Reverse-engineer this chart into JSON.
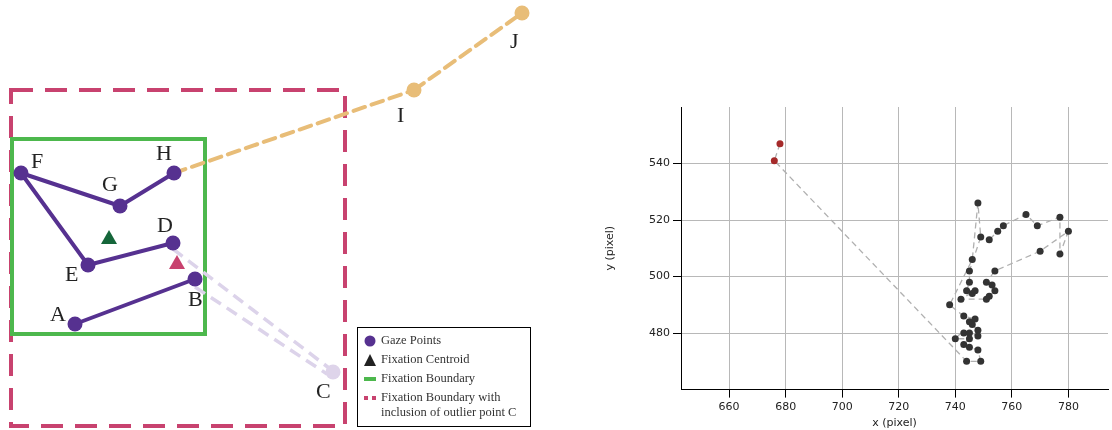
{
  "chart_data": [
    {
      "type": "other",
      "annotations": [
        "A",
        "B",
        "C",
        "D",
        "E",
        "F",
        "G",
        "H",
        "I",
        "J",
        "Gaze Points",
        "Fixation Centroid",
        "Fixation Boundary",
        "Fixation Boundary with inclusion of outlier point C"
      ]
    },
    {
      "type": "scatter",
      "xlabel": "x (pixel)",
      "ylabel": "y (pixel)",
      "xlim": [
        643,
        794
      ],
      "ylim": [
        460,
        560
      ],
      "xticks": [
        660,
        680,
        700,
        720,
        740,
        760,
        780
      ],
      "yticks": [
        480,
        500,
        520,
        540
      ],
      "grid": true,
      "legend": false,
      "series": [
        {
          "type": "line",
          "color": "#b0b0b0",
          "line_style": "dashed",
          "marker": "none",
          "x": [
            678,
            676,
            744,
            749,
            748,
            745,
            743,
            745,
            740,
            742,
            743,
            745,
            748,
            748,
            746,
            745,
            747,
            743,
            738,
            746,
            748,
            749,
            745,
            745,
            744,
            746,
            747,
            742,
            751,
            752,
            754,
            753,
            751,
            754,
            770,
            780,
            777,
            777,
            769,
            765,
            757,
            755,
            752
          ],
          "values": [
            547,
            541,
            470,
            470,
            474,
            475,
            476,
            478,
            478,
            480,
            480,
            480,
            479,
            481,
            483,
            484,
            485,
            486,
            490,
            506,
            526,
            514,
            502,
            498,
            495,
            494,
            495,
            492,
            492,
            493,
            495,
            497,
            498,
            502,
            509,
            516,
            508,
            521,
            518,
            522,
            518,
            516,
            513
          ]
        },
        {
          "color": "#333333",
          "marker": "circle",
          "x": [
            748,
            749,
            752,
            755,
            757,
            765,
            769,
            777,
            780,
            770,
            777,
            746,
            745,
            754,
            745,
            751,
            753,
            754,
            744,
            746,
            747,
            752,
            751,
            742,
            738,
            743,
            747,
            745,
            746,
            748,
            743,
            745,
            748,
            740,
            745,
            743,
            745,
            748,
            744,
            749
          ],
          "values": [
            526,
            514,
            513,
            516,
            518,
            522,
            518,
            521,
            516,
            509,
            508,
            506,
            502,
            502,
            498,
            498,
            497,
            495,
            495,
            494,
            495,
            493,
            492,
            492,
            490,
            486,
            485,
            484,
            483,
            481,
            480,
            480,
            479,
            478,
            478,
            476,
            475,
            474,
            470,
            470
          ]
        },
        {
          "color": "#a52a2a",
          "marker": "circle",
          "x": [
            678,
            676
          ],
          "values": [
            547,
            541
          ]
        }
      ]
    }
  ]
}
